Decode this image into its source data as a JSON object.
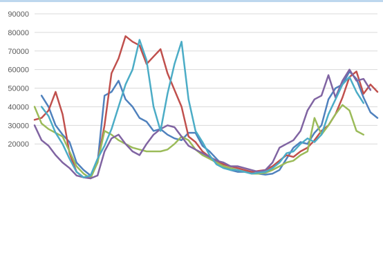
{
  "chart_data": {
    "type": "line",
    "ylim": [
      0,
      90000
    ],
    "y_ticks": [
      "90000",
      "80000",
      "70000",
      "60000",
      "50000",
      "40000",
      "30000",
      "20000"
    ],
    "grid": true,
    "x_count": 50,
    "series": [
      {
        "color": "#4f81bd",
        "values": [
          null,
          46000,
          40000,
          30000,
          25000,
          21000,
          10000,
          6000,
          3000,
          10000,
          46000,
          48000,
          54000,
          44000,
          40000,
          34000,
          32000,
          27000,
          28000,
          25000,
          23000,
          22000,
          26000,
          26000,
          19000,
          16000,
          12000,
          8000,
          6000,
          5000,
          5000,
          4500,
          4000,
          3500,
          4000,
          6000,
          12000,
          18000,
          21000,
          20000,
          26000,
          30000,
          44000,
          50000,
          52000,
          59000,
          55000,
          45000,
          37000,
          34000
        ]
      },
      {
        "color": "#c0504d",
        "values": [
          33000,
          34000,
          38000,
          48000,
          36000,
          15000,
          5000,
          2000,
          2000,
          10000,
          30000,
          58000,
          66000,
          78000,
          75000,
          73000,
          63000,
          67000,
          71000,
          58000,
          49000,
          40000,
          24000,
          21000,
          16000,
          13000,
          11000,
          9000,
          8000,
          7000,
          6000,
          5000,
          5500,
          6000,
          8000,
          11000,
          14000,
          13000,
          16000,
          18000,
          22000,
          27000,
          30000,
          36000,
          45000,
          56000,
          59000,
          47000,
          52000,
          48000
        ]
      },
      {
        "color": "#9bbb59",
        "values": [
          40000,
          31000,
          28000,
          26000,
          24000,
          16000,
          8000,
          4000,
          1500,
          10000,
          27000,
          25000,
          22000,
          20000,
          18000,
          17000,
          16000,
          16000,
          16000,
          17000,
          20000,
          24000,
          22000,
          17000,
          14000,
          12000,
          10000,
          8000,
          7000,
          6000,
          5000,
          4000,
          4000,
          4500,
          6000,
          8000,
          10000,
          11000,
          14000,
          16000,
          34000,
          25000,
          30000,
          36000,
          41000,
          38000,
          27000,
          25000,
          null,
          null
        ]
      },
      {
        "color": "#8064a2",
        "values": [
          30000,
          22000,
          19000,
          14000,
          10000,
          7000,
          3000,
          2000,
          1500,
          3000,
          16000,
          23000,
          25000,
          20000,
          16000,
          14000,
          20000,
          25000,
          28000,
          30000,
          29000,
          24000,
          19000,
          17000,
          15000,
          13000,
          11000,
          10000,
          8000,
          8000,
          7000,
          6000,
          5000,
          6000,
          10000,
          18000,
          20000,
          22000,
          27000,
          38000,
          44000,
          46000,
          57000,
          45000,
          54000,
          60000,
          54000,
          55000,
          49000,
          null
        ]
      },
      {
        "color": "#4bacc6",
        "values": [
          null,
          40000,
          35000,
          26000,
          20000,
          12000,
          5000,
          2000,
          3000,
          12000,
          19000,
          28000,
          40000,
          52000,
          60000,
          76000,
          65000,
          40000,
          27000,
          47000,
          63000,
          75000,
          44000,
          27000,
          21000,
          14000,
          9000,
          7000,
          6000,
          6000,
          5000,
          4000,
          4500,
          5000,
          7000,
          10000,
          15000,
          16000,
          20000,
          23000,
          21000,
          25000,
          36000,
          44000,
          52000,
          56000,
          48000,
          42000,
          null,
          null
        ]
      }
    ]
  }
}
